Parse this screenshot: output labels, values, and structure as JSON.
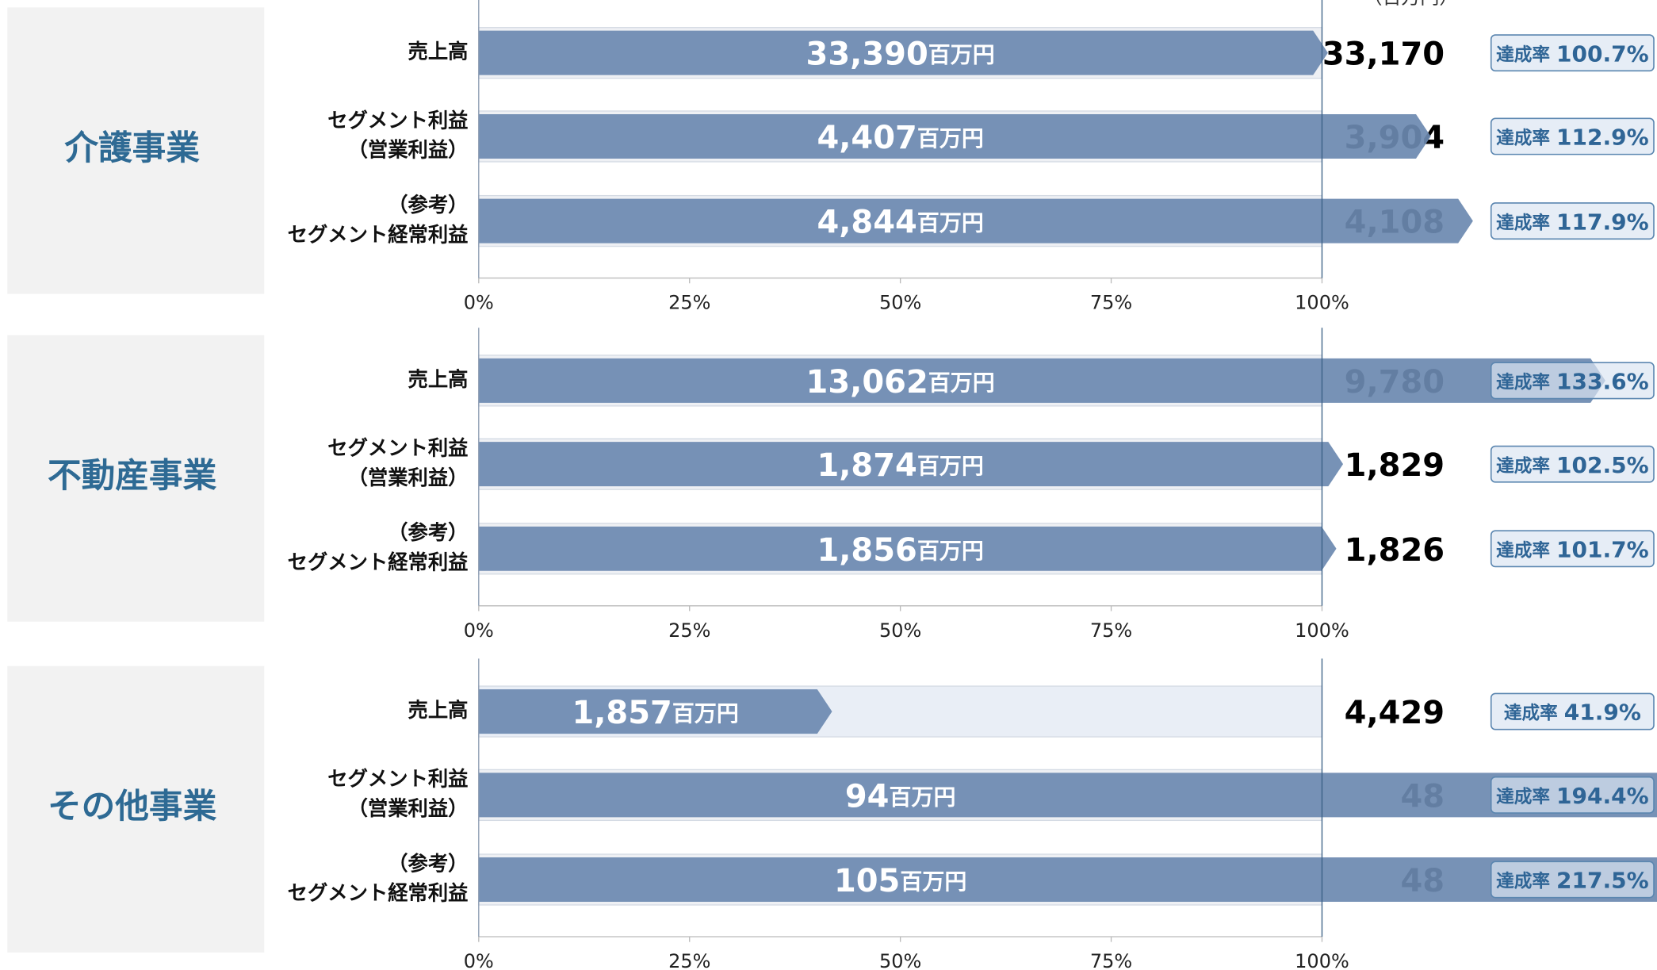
{
  "unit_note": "（百万円）",
  "rate_prefix": "達成率",
  "amount_unit": "百万円",
  "chart_data": [
    {
      "type": "bar",
      "title": "介護事業",
      "categories": [
        [
          "売上高"
        ],
        [
          "セグメント利益",
          "（営業利益）"
        ],
        [
          "（参考）",
          "セグメント経常利益"
        ]
      ],
      "values": [
        100.7,
        112.9,
        117.9
      ],
      "value_labels": [
        "100.7%",
        "112.9%",
        "117.9%"
      ],
      "actual_labels": [
        "33,390",
        "4,407",
        "4,844"
      ],
      "plan_labels": [
        "33,170",
        "3,904",
        "4,108"
      ],
      "color": "#6b89b0",
      "xlim": [
        0,
        100
      ],
      "xticks": [
        {
          "value": 0,
          "label": "0%"
        },
        {
          "value": 25,
          "label": "25%"
        },
        {
          "value": 50,
          "label": "50%"
        },
        {
          "value": 75,
          "label": "75%"
        },
        {
          "value": 100,
          "label": "100%"
        }
      ]
    },
    {
      "type": "bar",
      "title": "不動産事業",
      "categories": [
        [
          "売上高"
        ],
        [
          "セグメント利益",
          "（営業利益）"
        ],
        [
          "（参考）",
          "セグメント経常利益"
        ]
      ],
      "values": [
        133.6,
        102.5,
        101.7
      ],
      "value_labels": [
        "133.6%",
        "102.5%",
        "101.7%"
      ],
      "actual_labels": [
        "13,062",
        "1,874",
        "1,856"
      ],
      "plan_labels": [
        "9,780",
        "1,829",
        "1,826"
      ],
      "color": "#6b89b0",
      "xlim": [
        0,
        100
      ],
      "xticks": [
        {
          "value": 0,
          "label": "0%"
        },
        {
          "value": 25,
          "label": "25%"
        },
        {
          "value": 50,
          "label": "50%"
        },
        {
          "value": 75,
          "label": "75%"
        },
        {
          "value": 100,
          "label": "100%"
        }
      ]
    },
    {
      "type": "bar",
      "title": "その他事業",
      "categories": [
        [
          "売上高"
        ],
        [
          "セグメント利益",
          "（営業利益）"
        ],
        [
          "（参考）",
          "セグメント経常利益"
        ]
      ],
      "values": [
        41.9,
        194.4,
        217.5
      ],
      "value_labels": [
        "41.9%",
        "194.4%",
        "217.5%"
      ],
      "actual_labels": [
        "1,857",
        "94",
        "105"
      ],
      "plan_labels": [
        "4,429",
        "48",
        "48"
      ],
      "color": "#6b89b0",
      "xlim": [
        0,
        100
      ],
      "xticks": [
        {
          "value": 0,
          "label": "0%"
        },
        {
          "value": 25,
          "label": "25%"
        },
        {
          "value": 50,
          "label": "50%"
        },
        {
          "value": 75,
          "label": "75%"
        },
        {
          "value": 100,
          "label": "100%"
        }
      ]
    }
  ]
}
